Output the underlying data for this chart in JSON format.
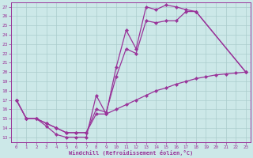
{
  "xlabel": "Windchill (Refroidissement éolien,°C)",
  "xlim": [
    -0.5,
    23.5
  ],
  "ylim": [
    12.5,
    27.5
  ],
  "xticks": [
    0,
    1,
    2,
    3,
    4,
    5,
    6,
    7,
    8,
    9,
    10,
    11,
    12,
    13,
    14,
    15,
    16,
    17,
    18,
    19,
    20,
    21,
    22,
    23
  ],
  "yticks": [
    13,
    14,
    15,
    16,
    17,
    18,
    19,
    20,
    21,
    22,
    23,
    24,
    25,
    26,
    27
  ],
  "bg_color": "#cce8e8",
  "grid_color": "#aacccc",
  "line_color": "#993399",
  "line_width": 0.9,
  "marker": "D",
  "marker_size": 2.2,
  "curves": [
    {
      "x": [
        0,
        1,
        2,
        3,
        4,
        5,
        6,
        7,
        8,
        9,
        10,
        11,
        12,
        13,
        14,
        15,
        16,
        17,
        18,
        23
      ],
      "y": [
        17,
        15,
        15,
        14.2,
        13.3,
        13.0,
        13.0,
        13.0,
        17.5,
        15.5,
        20.5,
        24.5,
        22.5,
        27.0,
        26.7,
        27.2,
        27.0,
        26.7,
        26.5,
        20.0
      ]
    },
    {
      "x": [
        0,
        1,
        2,
        3,
        4,
        5,
        6,
        7,
        8,
        9,
        10,
        11,
        12,
        13,
        14,
        15,
        16,
        17,
        18,
        23
      ],
      "y": [
        17,
        15,
        15,
        14.5,
        14.0,
        13.5,
        13.5,
        13.5,
        16.0,
        15.7,
        19.5,
        22.5,
        22.0,
        25.5,
        25.3,
        25.5,
        25.5,
        26.5,
        26.5,
        20.0
      ]
    },
    {
      "x": [
        0,
        1,
        2,
        3,
        4,
        5,
        6,
        7,
        8,
        9,
        10,
        11,
        12,
        13,
        14,
        15,
        16,
        17,
        18,
        19,
        20,
        21,
        22,
        23
      ],
      "y": [
        17,
        15,
        15,
        14.5,
        14.0,
        13.5,
        13.5,
        13.5,
        15.5,
        15.5,
        16.0,
        16.5,
        17.0,
        17.5,
        18.0,
        18.3,
        18.7,
        19.0,
        19.3,
        19.5,
        19.7,
        19.8,
        19.9,
        20.0
      ]
    }
  ]
}
